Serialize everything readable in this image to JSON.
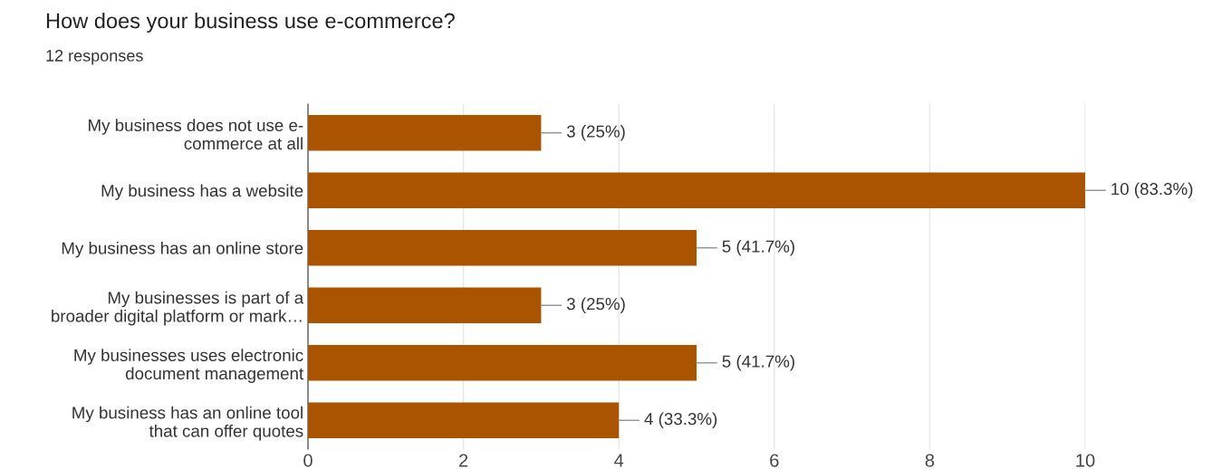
{
  "chart_data": {
    "type": "bar",
    "orientation": "horizontal",
    "title": "How does your business use e-commerce?",
    "subtitle": "12 responses",
    "categories": [
      "My business does not use e-\ncommerce at all",
      "My business has a website",
      "My business has an online store",
      "My businesses is part of a\nbroader digital platform or mark…",
      "My businesses uses electronic\ndocument management",
      "My business has an online tool\nthat can offer quotes"
    ],
    "values": [
      3,
      10,
      5,
      3,
      5,
      4
    ],
    "value_labels": [
      "3 (25%)",
      "10 (83.3%)",
      "5 (41.7%)",
      "3 (25%)",
      "5 (41.7%)",
      "4 (33.3%)"
    ],
    "color": "#ab5400",
    "xlim": [
      0,
      10
    ],
    "xticks": [
      0,
      2,
      4,
      6,
      8,
      10
    ],
    "grid": "x"
  }
}
